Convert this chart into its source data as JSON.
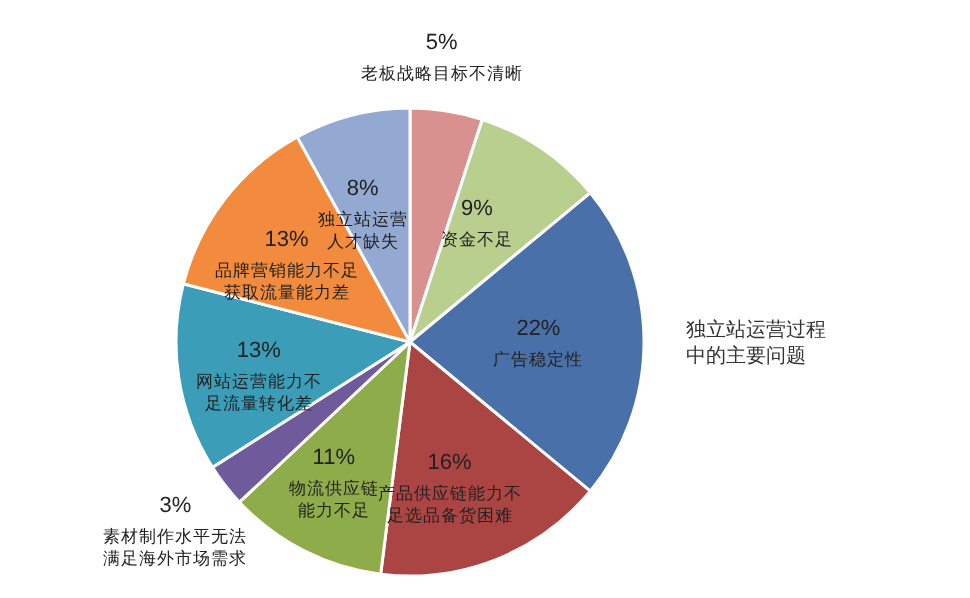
{
  "chart_data": {
    "type": "pie",
    "title": "独立站运营过程中的主要问题",
    "categories": [
      "老板战略目标不清晰",
      "资金不足",
      "广告稳定性",
      "产品供应链能力不足选品备货困难",
      "物流供应链能力不足",
      "素材制作水平无法满足海外市场需求",
      "网站运营能力不足流量转化差",
      "品牌营销能力不足获取流量能力差",
      "独立站运营人才缺失"
    ],
    "values": [
      5,
      9,
      22,
      16,
      11,
      3,
      13,
      13,
      8
    ],
    "value_labels": [
      "5%",
      "9%",
      "22%",
      "16%",
      "11%",
      "3%",
      "13%",
      "13%",
      "8%"
    ],
    "colors": [
      "#d9918f",
      "#b9cf8d",
      "#4a70a9",
      "#ab4543",
      "#8fac4a",
      "#6f5a9b",
      "#3c9db8",
      "#f28b3d",
      "#93a9d1"
    ]
  }
}
